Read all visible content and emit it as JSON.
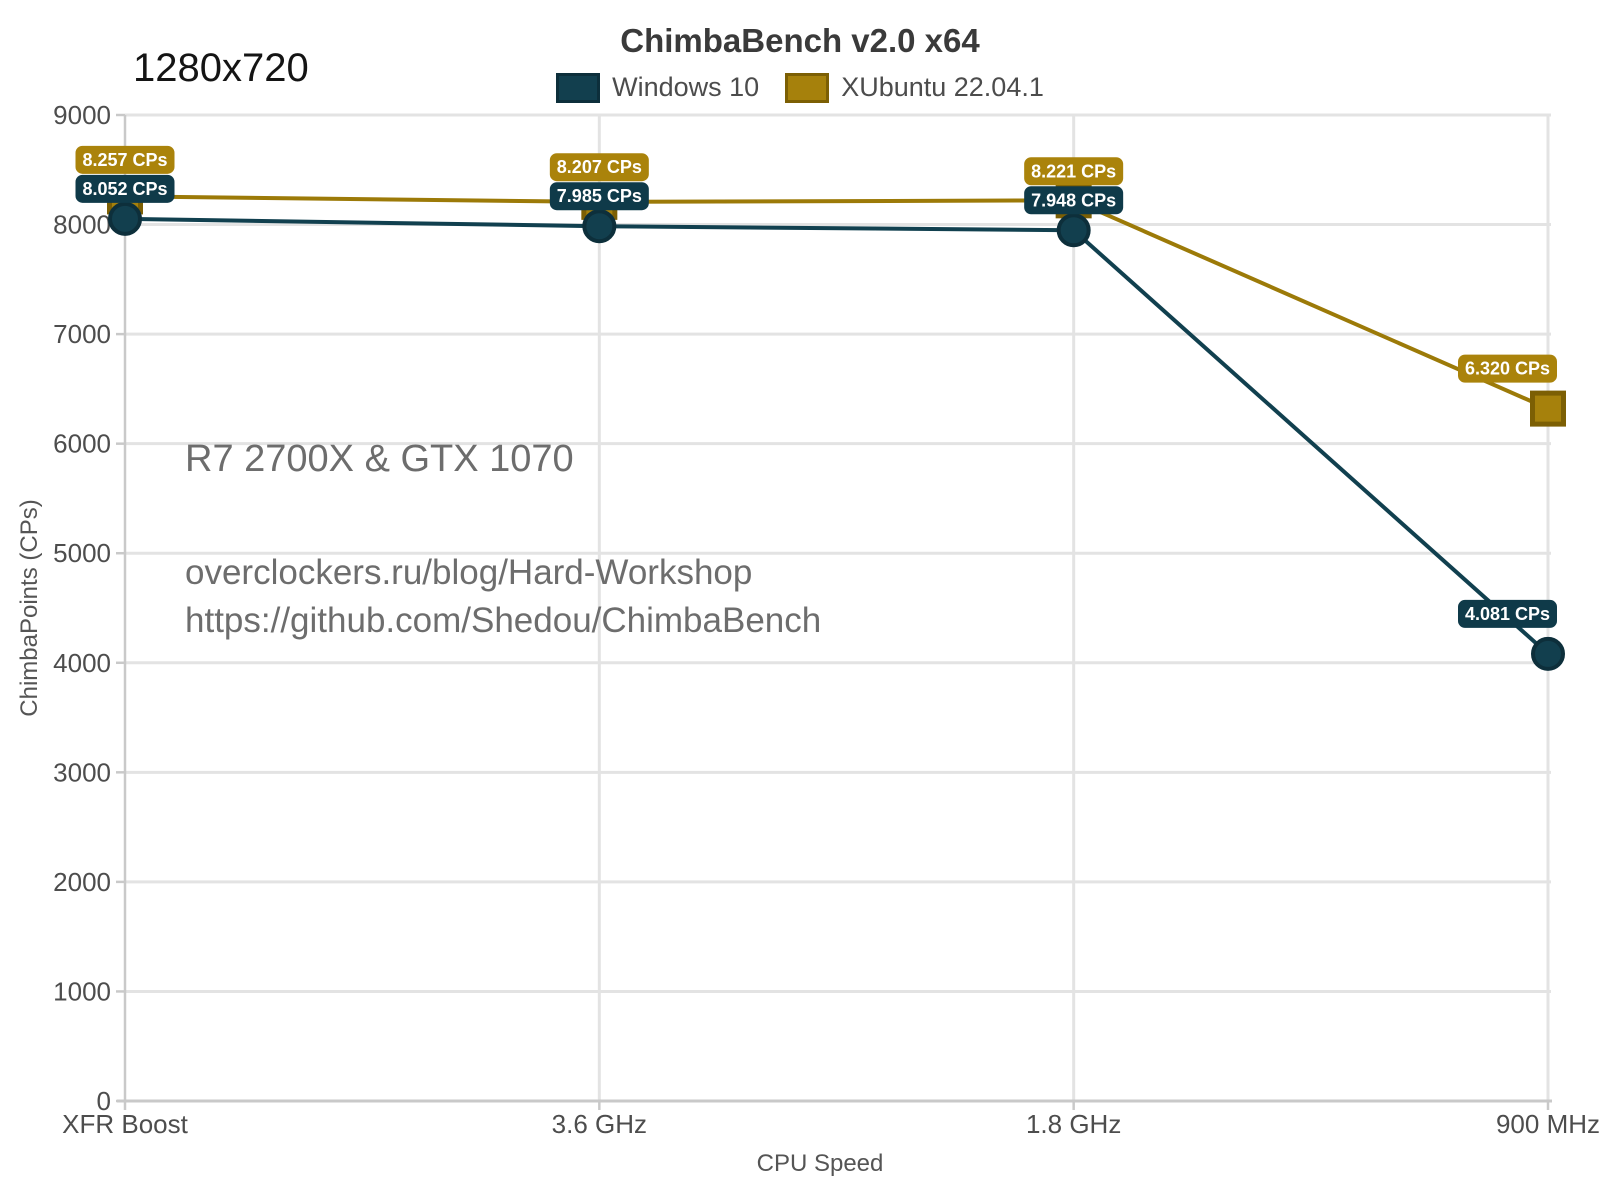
{
  "page": {
    "resolution_label": "1280x720",
    "annotations": {
      "hardware": "R7 2700X & GTX 1070",
      "blog": "overclockers.ru/blog/Hard-Workshop",
      "repo": "https://github.com/Shedou/ChimbaBench"
    }
  },
  "colors": {
    "background": "#ffffff",
    "gridline": "#e3e3e3",
    "axis": "#c9c9c9",
    "tick_text": "#4d4d4d",
    "axis_title_text": "#555555",
    "title_text": "#3a3a3a",
    "annotation_text": "#6d6d6d",
    "badge_text": "#ffffff"
  },
  "chart_data": {
    "type": "line",
    "title": "ChimbaBench v2.0 x64",
    "xlabel": "CPU Speed",
    "ylabel": "ChimbaPoints (CPs)",
    "categories": [
      "XFR Boost",
      "3.6 GHz",
      "1.8 GHz",
      "900 MHz"
    ],
    "ylim": [
      0,
      9000
    ],
    "ytick_step": 1000,
    "grid": true,
    "legend_position": "top",
    "series": [
      {
        "name": "Windows 10",
        "values": [
          8052,
          7985,
          7948,
          4081
        ],
        "labels": [
          "8.052 CPs",
          "7.985 CPs",
          "7.948 CPs",
          "4.081 CPs"
        ],
        "marker": "circle",
        "line_color": "#11404f",
        "marker_fill": "#123f4e",
        "marker_stroke": "#0d2f3b",
        "badge_color": "#0f3a49"
      },
      {
        "name": "XUbuntu 22.04.1",
        "values": [
          8257,
          8207,
          8221,
          6320
        ],
        "labels": [
          "8.257 CPs",
          "8.207 CPs",
          "8.221 CPs",
          "6.320 CPs"
        ],
        "marker": "square",
        "line_color": "#9c7a08",
        "marker_fill": "#a6810c",
        "marker_stroke": "#7c5f04",
        "badge_color": "#aa830b"
      }
    ]
  }
}
